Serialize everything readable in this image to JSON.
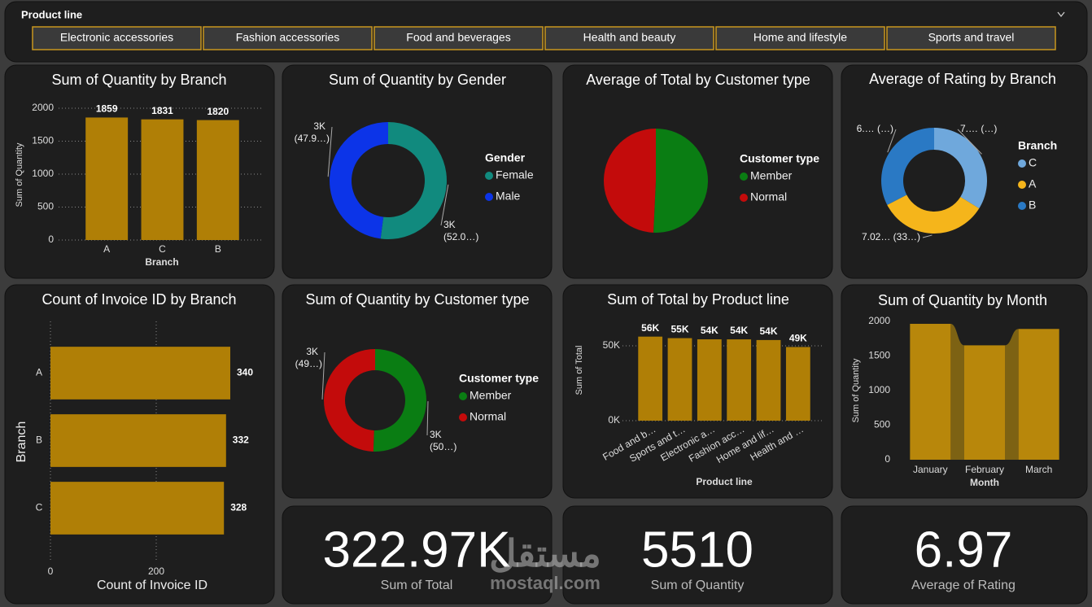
{
  "slicer": {
    "title": "Product line",
    "items": [
      "Electronic accessories",
      "Fashion accessories",
      "Food and beverages",
      "Health and beauty",
      "Home and lifestyle",
      "Sports and travel"
    ]
  },
  "chart_data": [
    {
      "type": "bar",
      "title": "Sum of Quantity by Branch",
      "x_label": "Branch",
      "y_label": "Sum of Quantity",
      "categories": [
        "A",
        "C",
        "B"
      ],
      "values": [
        1859,
        1831,
        1820
      ],
      "color": "#b07f06",
      "ylim": [
        0,
        2000
      ],
      "yticks": [
        0,
        500,
        1000,
        1500,
        2000
      ],
      "grid": true
    },
    {
      "type": "donut",
      "title": "Sum of Quantity by Gender",
      "legend_title": "Gender",
      "categories": [
        "Female",
        "Male"
      ],
      "values": [
        2869,
        2641
      ],
      "value_labels": [
        "3K (52.0…)",
        "3K (47.9…)"
      ],
      "colors": [
        "#118a7e",
        "#0c34e8"
      ]
    },
    {
      "type": "pie",
      "title": "Average of Total by Customer type",
      "legend_title": "Customer type",
      "categories": [
        "Member",
        "Normal"
      ],
      "values": [
        327.79,
        318.12
      ],
      "colors": [
        "#0a7d13",
        "#c30b0b"
      ]
    },
    {
      "type": "donut",
      "title": "Average of Rating by Branch",
      "legend_title": "Branch",
      "categories": [
        "C",
        "A",
        "B"
      ],
      "values": [
        7.073,
        7.027,
        6.818
      ],
      "value_labels": [
        "7.… (…)",
        "7.02… (33…)",
        "6.… (…)"
      ],
      "colors": [
        "#6fa8dc",
        "#f5b51b",
        "#2a79c4"
      ]
    },
    {
      "type": "hbar",
      "title": "Count of Invoice ID by Branch",
      "x_label": "Count of Invoice ID",
      "y_label": "Branch",
      "categories": [
        "A",
        "B",
        "C"
      ],
      "values": [
        340,
        332,
        328
      ],
      "color": "#b07f06",
      "xlim": [
        0,
        400
      ],
      "xticks": [
        0,
        200
      ],
      "grid": true
    },
    {
      "type": "donut",
      "title": "Sum of Quantity by Customer type",
      "legend_title": "Customer type",
      "categories": [
        "Member",
        "Normal"
      ],
      "values": [
        2785,
        2725
      ],
      "value_labels": [
        "3K (50…)",
        "3K (49…)"
      ],
      "colors": [
        "#0a7d13",
        "#c30b0b"
      ]
    },
    {
      "type": "bar",
      "title": "Sum of Total by Product line",
      "x_label": "Product line",
      "y_label": "Sum of Total",
      "categories": [
        "Food and b…",
        "Sports and t…",
        "Electronic a…",
        "Fashion acc…",
        "Home and lif…",
        "Health and …"
      ],
      "values": [
        56144.84,
        55122.83,
        54337.53,
        54305.89,
        53861.91,
        49193.74
      ],
      "value_labels": [
        "56K",
        "55K",
        "54K",
        "54K",
        "54K",
        "49K"
      ],
      "color": "#b07f06",
      "ylim": [
        0,
        60000
      ],
      "yticks": [
        {
          "value": 0,
          "label": "0K"
        },
        {
          "value": 50000,
          "label": "50K"
        }
      ],
      "grid": true
    },
    {
      "type": "ribbon",
      "title": "Sum of Quantity by Month",
      "x_label": "Month",
      "y_label": "Sum of Quantity",
      "categories": [
        "January",
        "February",
        "March"
      ],
      "values": [
        1965,
        1654,
        1891
      ],
      "color": "#b8870b",
      "ribbon_color": "#7d6213",
      "ylim": [
        0,
        2000
      ],
      "yticks": [
        0,
        500,
        1000,
        1500,
        2000
      ],
      "grid": false
    }
  ],
  "cards": [
    {
      "value": "322.97K",
      "label": "Sum of Total"
    },
    {
      "value": 5510,
      "label": "Sum of Quantity"
    },
    {
      "value": 6.97,
      "label": "Average of Rating"
    }
  ],
  "watermark": {
    "logo": "مستقل",
    "site": "mostaql.com"
  }
}
